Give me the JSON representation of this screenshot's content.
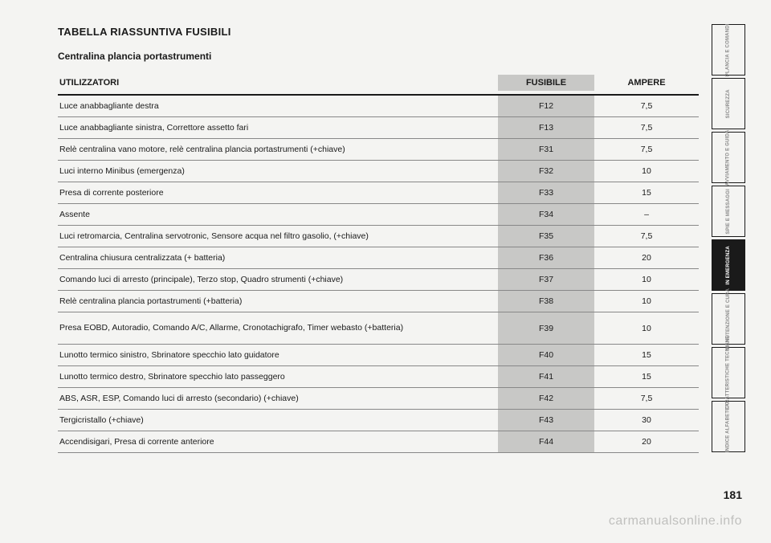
{
  "title": "TABELLA RIASSUNTIVA FUSIBILI",
  "subtitle": "Centralina plancia portastrumenti",
  "headers": {
    "util": "UTILIZZATORI",
    "fuse": "FUSIBILE",
    "amp": "AMPERE"
  },
  "rows": [
    {
      "util": "Luce anabbagliante destra",
      "fuse": "F12",
      "amp": "7,5"
    },
    {
      "util": "Luce anabbagliante sinistra, Correttore assetto fari",
      "fuse": "F13",
      "amp": "7,5"
    },
    {
      "util": "Relè centralina vano motore, relè centralina plancia portastrumenti (+chiave)",
      "fuse": "F31",
      "amp": "7,5"
    },
    {
      "util": "Luci interno Minibus (emergenza)",
      "fuse": "F32",
      "amp": "10"
    },
    {
      "util": "Presa di corrente posteriore",
      "fuse": "F33",
      "amp": "15"
    },
    {
      "util": "Assente",
      "fuse": "F34",
      "amp": "–"
    },
    {
      "util": "Luci retromarcia, Centralina servotronic, Sensore acqua nel filtro gasolio, (+chiave)",
      "fuse": "F35",
      "amp": "7,5"
    },
    {
      "util": "Centralina chiusura centralizzata (+ batteria)",
      "fuse": "F36",
      "amp": "20"
    },
    {
      "util": "Comando luci di arresto (principale), Terzo stop, Quadro strumenti (+chiave)",
      "fuse": "F37",
      "amp": "10"
    },
    {
      "util": "Relè centralina plancia portastrumenti (+batteria)",
      "fuse": "F38",
      "amp": "10"
    },
    {
      "util": "Presa EOBD, Autoradio, Comando A/C, Allarme, Cronotachigrafo,\nTimer webasto (+batteria)",
      "fuse": "F39",
      "amp": "10",
      "tall": true
    },
    {
      "util": "Lunotto termico sinistro, Sbrinatore specchio lato guidatore",
      "fuse": "F40",
      "amp": "15"
    },
    {
      "util": "Lunotto termico destro, Sbrinatore specchio lato passeggero",
      "fuse": "F41",
      "amp": "15"
    },
    {
      "util": "ABS, ASR, ESP, Comando luci di arresto (secondario) (+chiave)",
      "fuse": "F42",
      "amp": "7,5"
    },
    {
      "util": "Tergicristallo (+chiave)",
      "fuse": "F43",
      "amp": "30"
    },
    {
      "util": "Accendisigari, Presa di corrente anteriore",
      "fuse": "F44",
      "amp": "20"
    }
  ],
  "tabs": [
    {
      "label": "PLANCIA E COMANDI",
      "active": false
    },
    {
      "label": "SICUREZZA",
      "active": false
    },
    {
      "label": "AVVIAMENTO E GUIDA",
      "active": false
    },
    {
      "label": "SPIE E MESSAGGI",
      "active": false
    },
    {
      "label": "IN EMERGENZA",
      "active": true
    },
    {
      "label": "MANUTENZIONE E CURA",
      "active": false
    },
    {
      "label": "CARATTERISTICHE TECNICHE",
      "active": false
    },
    {
      "label": "INDICE ALFABETICO",
      "active": false
    }
  ],
  "page_number": "181",
  "watermark": "carmanualsonline.info"
}
